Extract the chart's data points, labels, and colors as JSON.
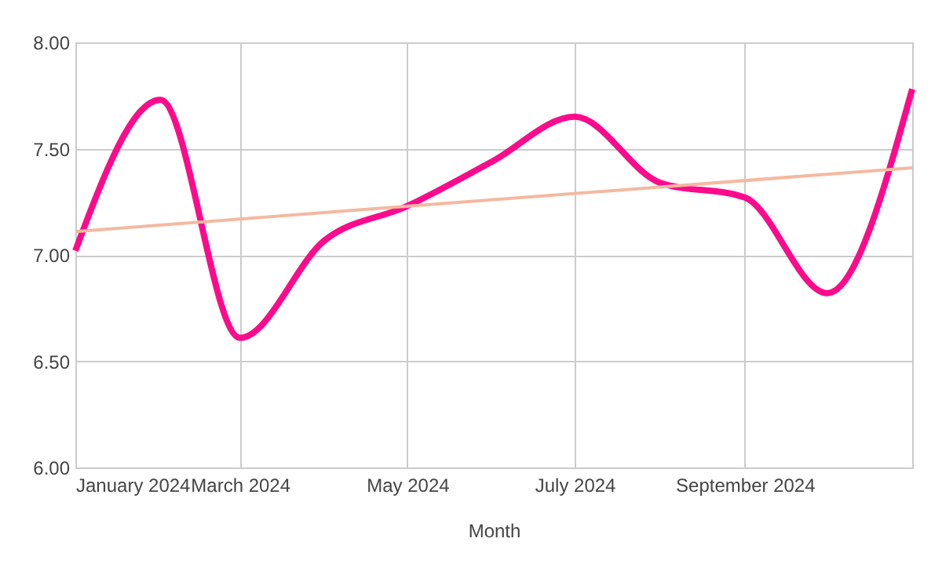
{
  "chart_data": {
    "type": "line",
    "xlabel": "Month",
    "x": [
      "2024-01",
      "2024-02",
      "2024-03",
      "2024-04",
      "2024-05",
      "2024-06",
      "2024-07",
      "2024-08",
      "2024-09",
      "2024-10",
      "2024-11"
    ],
    "series": [
      {
        "color": "#ff0a8c",
        "values": [
          7.02,
          7.73,
          6.61,
          7.07,
          7.23,
          7.44,
          7.65,
          7.34,
          7.27,
          6.82,
          7.78
        ]
      },
      {
        "type": "line",
        "color": "#f4b9a0",
        "x": [
          "2024-01",
          "2024-11"
        ],
        "values": [
          7.11,
          7.41
        ]
      }
    ],
    "xlim": [
      "2024-01",
      "2024-11"
    ],
    "xticks": [
      {
        "value": "2024-01",
        "label": "January 2024"
      },
      {
        "value": "2024-03",
        "label": "March 2024"
      },
      {
        "value": "2024-05",
        "label": "May 2024"
      },
      {
        "value": "2024-07",
        "label": "July 2024"
      },
      {
        "value": "2024-09",
        "label": "September 2024"
      }
    ],
    "ylim": [
      6,
      8
    ],
    "yticks": [
      {
        "value": 6,
        "label": "6.00"
      },
      {
        "value": 6.5,
        "label": "6.50"
      },
      {
        "value": 7,
        "label": "7.00"
      },
      {
        "value": 7.5,
        "label": "7.50"
      },
      {
        "value": 8,
        "label": "8.00"
      }
    ],
    "grid": true,
    "marker": "none",
    "line_style": "solid"
  }
}
